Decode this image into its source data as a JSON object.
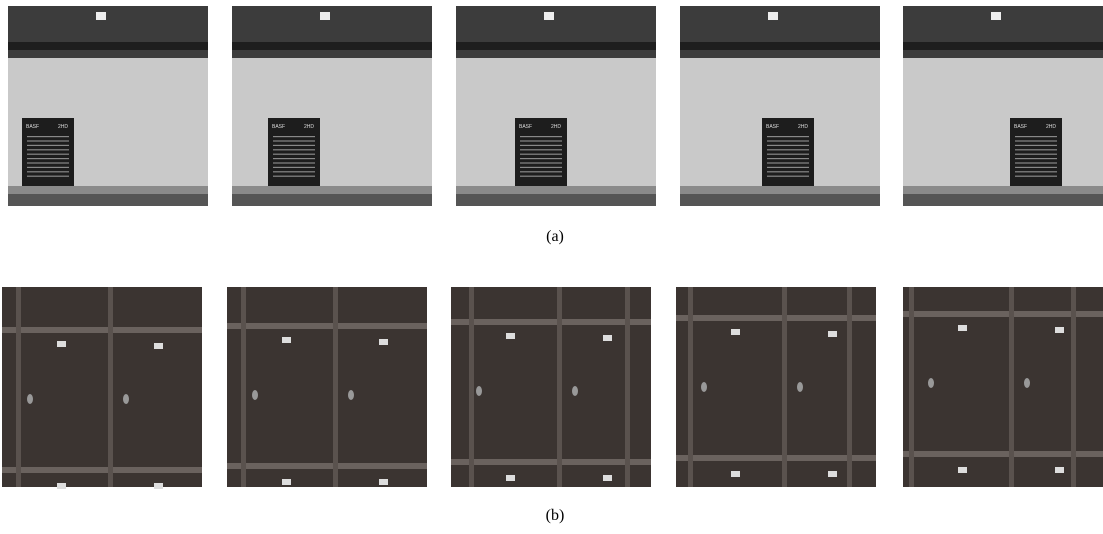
{
  "figure": {
    "rows": [
      {
        "caption": "(a)",
        "box_text": [
          "BASF",
          "2HD"
        ]
      },
      {
        "caption": "(b)"
      }
    ]
  }
}
